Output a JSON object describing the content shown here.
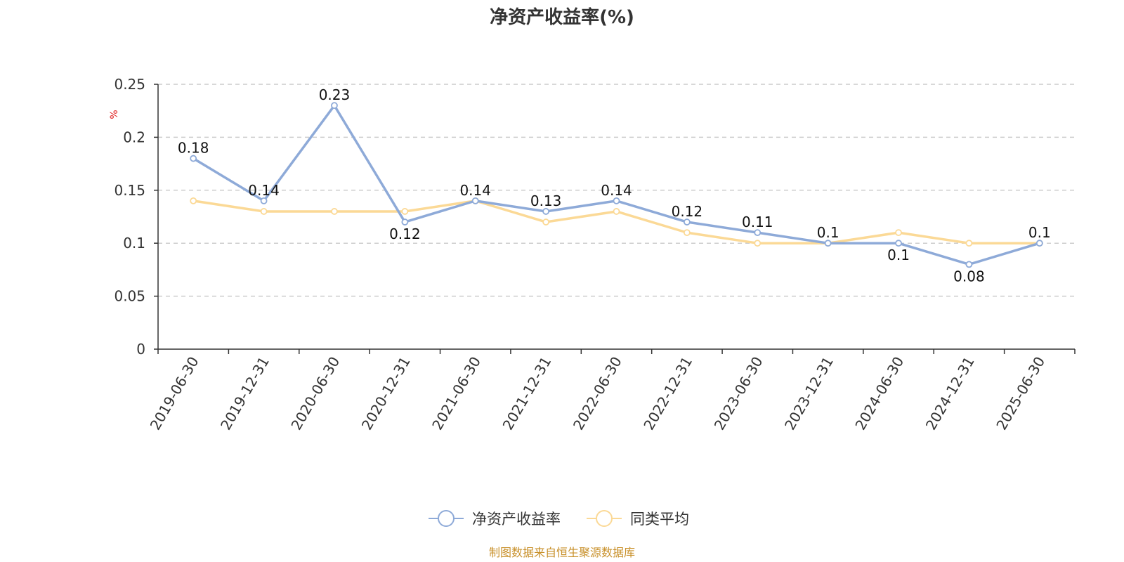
{
  "chart_data": {
    "type": "line",
    "title": "净资产收益率(%)",
    "ylabel": "%",
    "xlabel": "",
    "ylim": [
      0,
      0.25
    ],
    "yticks": [
      "0",
      "0.05",
      "0.1",
      "0.15",
      "0.2",
      "0.25"
    ],
    "grid": true,
    "legend_position": "bottom-center",
    "categories": [
      "2019-06-30",
      "2019-12-31",
      "2020-06-30",
      "2020-12-31",
      "2021-06-30",
      "2021-12-31",
      "2022-06-30",
      "2022-12-31",
      "2023-06-30",
      "2023-12-31",
      "2024-06-30",
      "2024-12-31",
      "2025-06-30"
    ],
    "series": [
      {
        "name": "净资产收益率",
        "color": "#8eaad8",
        "values": [
          0.18,
          0.14,
          0.23,
          0.12,
          0.14,
          0.13,
          0.14,
          0.12,
          0.11,
          0.1,
          0.1,
          0.08,
          0.1
        ],
        "labels": [
          "0.18",
          "0.14",
          "0.23",
          "0.12",
          "0.14",
          "0.13",
          "0.14",
          "0.12",
          "0.11",
          "0.1",
          "0.1",
          "0.08",
          "0.1"
        ]
      },
      {
        "name": "同类平均",
        "color": "#fbd996",
        "values": [
          0.14,
          0.13,
          0.13,
          0.13,
          0.14,
          0.12,
          0.13,
          0.11,
          0.1,
          0.1,
          0.11,
          0.1,
          0.1
        ]
      }
    ]
  },
  "footer": {
    "source": "制图数据来自恒生聚源数据库"
  }
}
